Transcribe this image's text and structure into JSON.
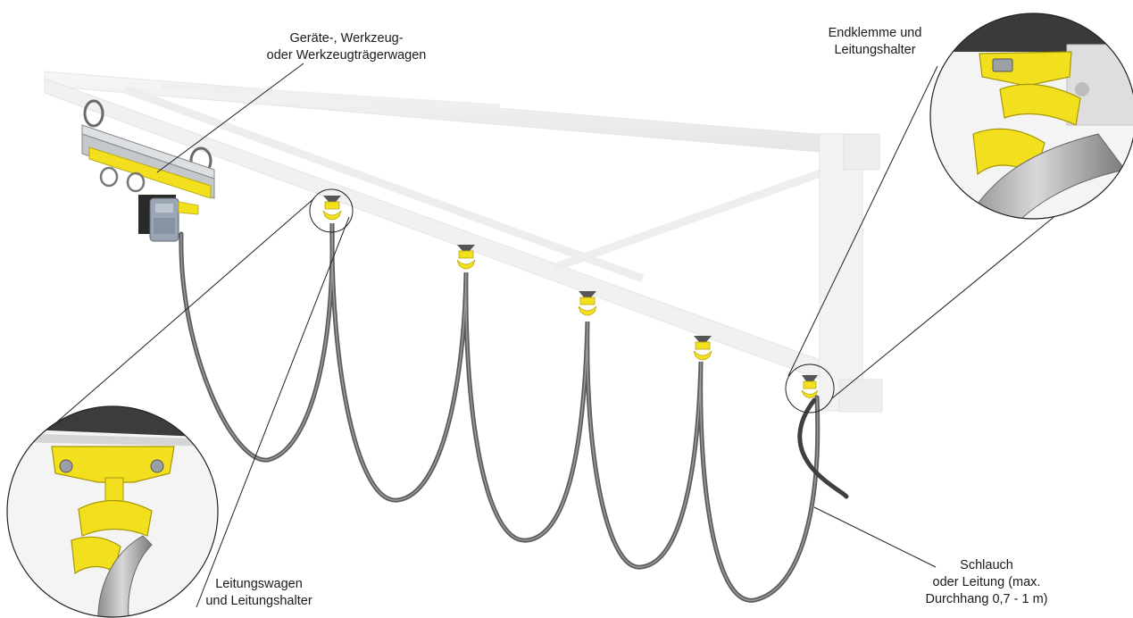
{
  "labels": {
    "trolley": {
      "line1": "Geräte-, Werkzeug-",
      "line2": "oder Werkzeugträgerwagen"
    },
    "end_clamp": {
      "line1": "Endklemme und",
      "line2": "Leitungshalter"
    },
    "cable_carrier": {
      "line1": "Leitungswagen",
      "line2": "und Leitungshalter"
    },
    "hose": {
      "line1": "Schlauch",
      "line2": "oder Leitung (max.",
      "line3": "Durchhang 0,7 - 1 m)"
    }
  },
  "colors": {
    "accent_yellow": "#f2e01e",
    "hose_gray": "#6b6b6b",
    "rail_light": "#ececec",
    "trolley_body": "#b8bcc2"
  }
}
